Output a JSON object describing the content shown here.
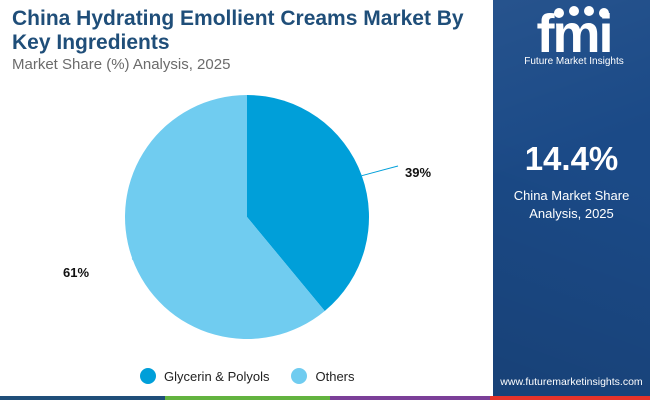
{
  "header": {
    "title": "China Hydrating Emollient Creams Market By Key Ingredients",
    "subtitle": "Market Share (%) Analysis, 2025"
  },
  "side_panel": {
    "logo_text": "fmi",
    "logo_tagline": "Future Market Insights",
    "highlight_value": "14.4%",
    "highlight_caption": "China Market Share Analysis, 2025",
    "website": "www.futuremarketinsights.com"
  },
  "colors": {
    "panel_bg": "#1b4a87",
    "title": "#1f4e79",
    "glycerin": "#009fd9",
    "others": "#70ccf0",
    "bar_segments": [
      "#1f4e79",
      "#63b33f",
      "#7b3f98",
      "#e5332a"
    ]
  },
  "chart_data": {
    "type": "pie",
    "title": "China Hydrating Emollient Creams Market By Key Ingredients",
    "subtitle": "Market Share (%) Analysis, 2025",
    "slices": [
      {
        "name": "Glycerin & Polyols",
        "value": 39,
        "label": "39%"
      },
      {
        "name": "Others",
        "value": 61,
        "label": "61%"
      }
    ],
    "legend_position": "bottom",
    "start_angle": "12 o'clock",
    "direction": "clockwise"
  }
}
